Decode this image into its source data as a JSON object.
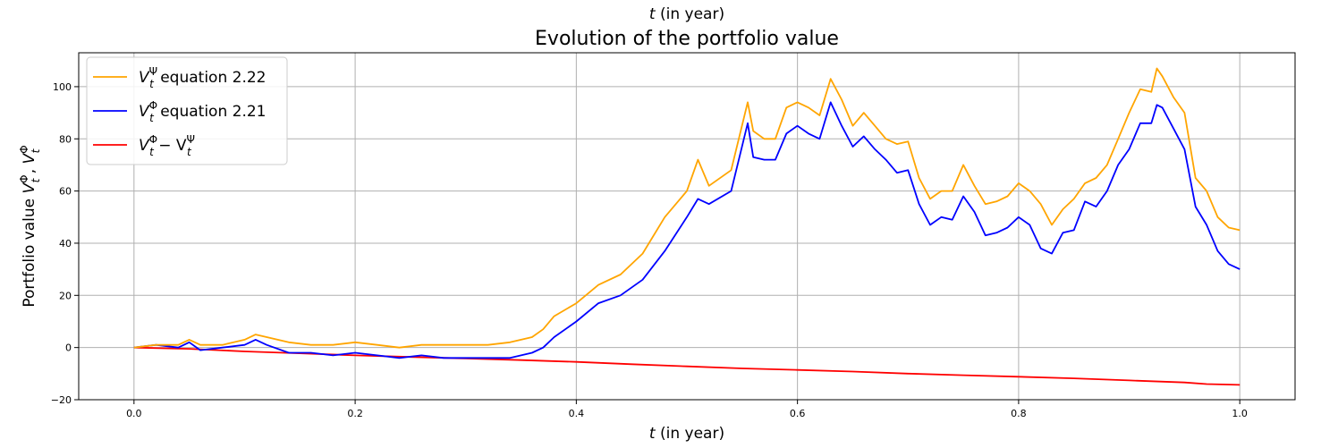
{
  "chart_data": {
    "type": "line",
    "top_label": "t (in year)",
    "title": "Evolution of the portfolio value",
    "xlabel": "t (in year)",
    "ylabel": "Portfolio value V_t^Φ , V_t^Φ",
    "xlim": [
      -0.05,
      1.05
    ],
    "ylim": [
      -20,
      113
    ],
    "grid": true,
    "legend_position": "top-left",
    "xticks": [
      0.0,
      0.2,
      0.4,
      0.6,
      0.8,
      1.0
    ],
    "xtick_labels": [
      "0.0",
      "0.2",
      "0.4",
      "0.6",
      "0.8",
      "1.0"
    ],
    "yticks": [
      -20,
      0,
      20,
      40,
      60,
      80,
      100
    ],
    "ytick_labels": [
      "−20",
      "0",
      "20",
      "40",
      "60",
      "80",
      "100"
    ],
    "legend": [
      {
        "symbol": "V",
        "sub": "t",
        "sup": "Ψ",
        "rest": " equation 2.22",
        "color": "#ffa500"
      },
      {
        "symbol": "V",
        "sub": "t",
        "sup": "Φ",
        "rest": " equation 2.21",
        "color": "#0000ff"
      },
      {
        "symbol": "V",
        "sub": "t",
        "sup": "Φ",
        "rest": " − V",
        "rest_sub": "t",
        "rest_sup": "Ψ",
        "color": "#ff0000"
      }
    ],
    "series": [
      {
        "name": "V_t^Ψ equation 2.22",
        "color": "#ffa500",
        "x": [
          0.0,
          0.02,
          0.04,
          0.05,
          0.06,
          0.08,
          0.1,
          0.11,
          0.12,
          0.14,
          0.16,
          0.18,
          0.2,
          0.22,
          0.24,
          0.26,
          0.28,
          0.3,
          0.32,
          0.34,
          0.36,
          0.37,
          0.38,
          0.4,
          0.42,
          0.44,
          0.46,
          0.48,
          0.5,
          0.51,
          0.52,
          0.54,
          0.555,
          0.56,
          0.57,
          0.58,
          0.59,
          0.6,
          0.61,
          0.62,
          0.63,
          0.64,
          0.65,
          0.66,
          0.67,
          0.68,
          0.69,
          0.7,
          0.71,
          0.72,
          0.73,
          0.74,
          0.75,
          0.76,
          0.77,
          0.78,
          0.79,
          0.8,
          0.81,
          0.82,
          0.83,
          0.84,
          0.85,
          0.86,
          0.87,
          0.88,
          0.89,
          0.9,
          0.91,
          0.92,
          0.925,
          0.93,
          0.94,
          0.95,
          0.96,
          0.97,
          0.98,
          0.99,
          1.0
        ],
        "values": [
          0,
          1,
          1,
          3,
          1,
          1,
          3,
          5,
          4,
          2,
          1,
          1,
          2,
          1,
          0,
          1,
          1,
          1,
          1,
          2,
          4,
          7,
          12,
          17,
          24,
          28,
          36,
          50,
          60,
          72,
          62,
          68,
          94,
          83,
          80,
          80,
          92,
          94,
          92,
          89,
          103,
          95,
          85,
          90,
          85,
          80,
          78,
          79,
          65,
          57,
          60,
          60,
          70,
          62,
          55,
          56,
          58,
          63,
          60,
          55,
          47,
          53,
          57,
          63,
          65,
          70,
          80,
          90,
          99,
          98,
          107,
          104,
          96,
          90,
          65,
          60,
          50,
          46,
          45
        ]
      },
      {
        "name": "V_t^Φ equation 2.21",
        "color": "#0000ff",
        "x": [
          0.0,
          0.02,
          0.04,
          0.05,
          0.06,
          0.08,
          0.1,
          0.11,
          0.12,
          0.14,
          0.16,
          0.18,
          0.2,
          0.22,
          0.24,
          0.26,
          0.28,
          0.3,
          0.32,
          0.34,
          0.36,
          0.37,
          0.38,
          0.4,
          0.42,
          0.44,
          0.46,
          0.48,
          0.5,
          0.51,
          0.52,
          0.54,
          0.555,
          0.56,
          0.57,
          0.58,
          0.59,
          0.6,
          0.61,
          0.62,
          0.63,
          0.64,
          0.65,
          0.66,
          0.67,
          0.68,
          0.69,
          0.7,
          0.71,
          0.72,
          0.73,
          0.74,
          0.75,
          0.76,
          0.77,
          0.78,
          0.79,
          0.8,
          0.81,
          0.82,
          0.83,
          0.84,
          0.85,
          0.86,
          0.87,
          0.88,
          0.89,
          0.9,
          0.91,
          0.92,
          0.925,
          0.93,
          0.94,
          0.95,
          0.96,
          0.97,
          0.98,
          0.99,
          1.0
        ],
        "values": [
          0,
          1,
          0,
          2,
          -1,
          0,
          1,
          3,
          1,
          -2,
          -2,
          -3,
          -2,
          -3,
          -4,
          -3,
          -4,
          -4,
          -4,
          -4,
          -2,
          0,
          4,
          10,
          17,
          20,
          26,
          37,
          50,
          57,
          55,
          60,
          86,
          73,
          72,
          72,
          82,
          85,
          82,
          80,
          94,
          85,
          77,
          81,
          76,
          72,
          67,
          68,
          55,
          47,
          50,
          49,
          58,
          52,
          43,
          44,
          46,
          50,
          47,
          38,
          36,
          44,
          45,
          56,
          54,
          60,
          70,
          76,
          86,
          86,
          93,
          92,
          84,
          76,
          54,
          47,
          37,
          32,
          30
        ]
      },
      {
        "name": "V_t^Φ − V_t^Ψ",
        "color": "#ff0000",
        "x": [
          0.0,
          0.05,
          0.1,
          0.15,
          0.2,
          0.25,
          0.3,
          0.35,
          0.4,
          0.45,
          0.5,
          0.55,
          0.6,
          0.65,
          0.7,
          0.75,
          0.8,
          0.85,
          0.9,
          0.95,
          0.97,
          1.0
        ],
        "values": [
          0,
          -0.5,
          -1.5,
          -2.2,
          -3.0,
          -3.6,
          -4.2,
          -4.8,
          -5.5,
          -6.4,
          -7.2,
          -8.0,
          -8.6,
          -9.2,
          -10.0,
          -10.6,
          -11.2,
          -11.8,
          -12.6,
          -13.4,
          -14.0,
          -14.3
        ]
      }
    ]
  }
}
